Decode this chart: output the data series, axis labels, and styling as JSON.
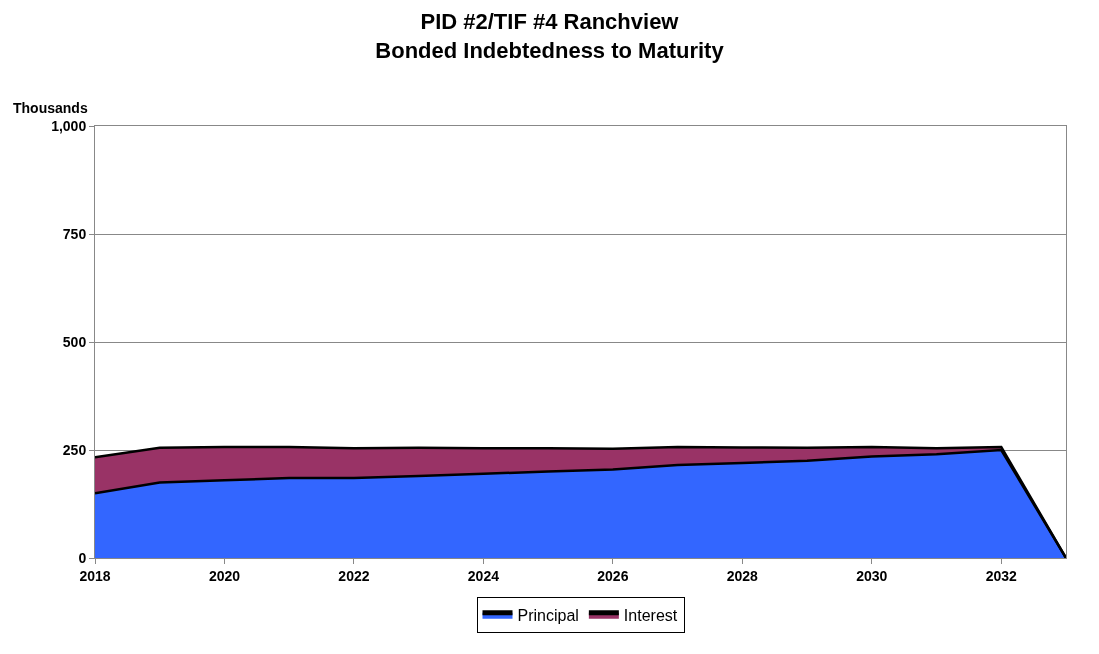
{
  "chart_data": {
    "type": "area",
    "title": "PID #2/TIF #4 Ranchview\nBonded Indebtedness to Maturity",
    "ylabel": "Thousands",
    "x": [
      2018,
      2019,
      2020,
      2021,
      2022,
      2023,
      2024,
      2025,
      2026,
      2027,
      2028,
      2029,
      2030,
      2031,
      2032,
      2033
    ],
    "stacked": true,
    "series": [
      {
        "name": "Principal",
        "color": "#3366ff",
        "values": [
          150,
          175,
          180,
          185,
          185,
          190,
          195,
          200,
          205,
          215,
          220,
          225,
          235,
          240,
          250,
          0
        ]
      },
      {
        "name": "Interest",
        "color": "#993366",
        "values": [
          83,
          80,
          77,
          72,
          69,
          65,
          59,
          54,
          48,
          42,
          36,
          30,
          22,
          14,
          7,
          0
        ]
      }
    ],
    "xlim": [
      2018,
      2033
    ],
    "xticks": [
      2018,
      2020,
      2022,
      2024,
      2026,
      2028,
      2030,
      2032
    ],
    "ylim": [
      0,
      1000
    ],
    "yticks": [
      0,
      {
        "value": 250,
        "label": "250"
      },
      {
        "value": 500,
        "label": "500"
      },
      {
        "value": 750,
        "label": "750"
      },
      {
        "value": 1000,
        "label": "1,000"
      }
    ],
    "grid": "y",
    "legend": "bottom"
  }
}
